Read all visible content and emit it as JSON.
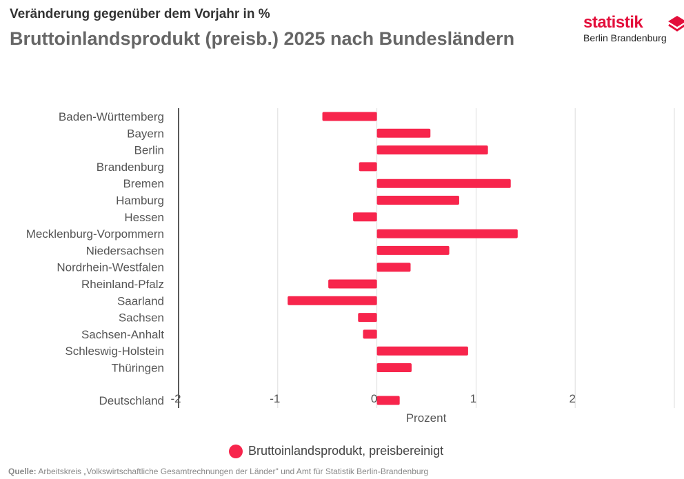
{
  "header": {
    "subtitle": "Veränderung gegenüber dem Vorjahr in %",
    "title": "Bruttoinlandsprodukt (preisb.) 2025 nach Bundesländern"
  },
  "logo": {
    "line1": "statistik",
    "line2": "Berlin Brandenburg",
    "color": "#e30f3b"
  },
  "chart_data": {
    "type": "bar",
    "orientation": "horizontal",
    "categories": [
      "Baden-Württemberg",
      "Bayern",
      "Berlin",
      "Brandenburg",
      "Bremen",
      "Hamburg",
      "Hessen",
      "Mecklenburg-Vorpommern",
      "Niedersachsen",
      "Nordrhein-Westfalen",
      "Rheinland-Pfalz",
      "Saarland",
      "Sachsen",
      "Sachsen-Anhalt",
      "Schleswig-Holstein",
      "Thüringen",
      "Deutschland"
    ],
    "series": [
      {
        "name": "Bruttoinlandsprodukt, preisbereinigt",
        "color": "#f7254c",
        "values": [
          -0.55,
          0.54,
          1.12,
          -0.18,
          1.35,
          0.83,
          -0.24,
          1.42,
          0.73,
          0.34,
          -0.49,
          -0.9,
          -0.19,
          -0.14,
          0.92,
          0.35,
          0.23
        ]
      }
    ],
    "xlabel": "Prozent",
    "xlim": [
      -2,
      3
    ],
    "xticks": [
      "-2",
      "-1",
      "0",
      "1",
      "2"
    ],
    "grid": true,
    "legend": "bottom"
  },
  "source": {
    "label": "Quelle:",
    "text": " Arbeitskreis „Volkswirtschaftliche Gesamtrechnungen der Länder\" und Amt für Statistik Berlin-Brandenburg"
  }
}
